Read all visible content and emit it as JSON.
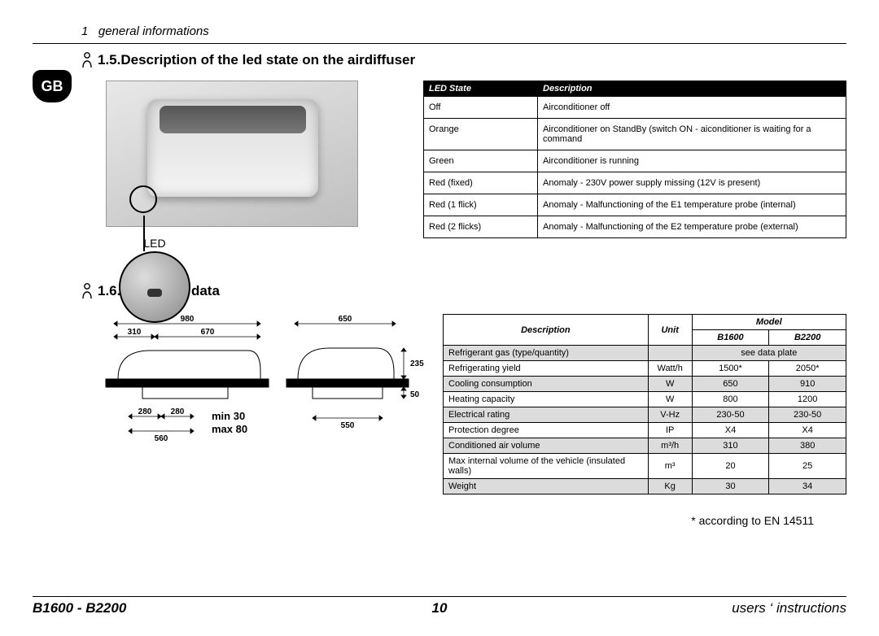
{
  "header": {
    "chapter_num": "1",
    "chapter_title": "general informations"
  },
  "country_badge": "GB",
  "section15": {
    "number": "1.5.",
    "title": "Description of the led state on the airdiffuser",
    "led_label": "LED",
    "table_headers": {
      "state": "LED State",
      "desc": "Description"
    },
    "rows": [
      {
        "state": "Off",
        "desc": "Airconditioner off"
      },
      {
        "state": "Orange",
        "desc": "Airconditioner on StandBy (switch ON - aiconditioner is waiting for a command"
      },
      {
        "state": "Green",
        "desc": "Airconditioner is running"
      },
      {
        "state": "Red (fixed)",
        "desc": "Anomaly - 230V power supply missing (12V is present)"
      },
      {
        "state": "Red  (1 flick)",
        "desc": "Anomaly - Malfunctioning of the E1 temperature probe (internal)"
      },
      {
        "state": "Red  (2 flicks)",
        "desc": "Anomaly - Malfunctioning of the E2 temperature probe (external)"
      }
    ]
  },
  "section16": {
    "number": "1.6.",
    "title": "Technical data",
    "dims": {
      "d980": "980",
      "d310": "310",
      "d670": "670",
      "d280a": "280",
      "d280b": "280",
      "d560": "560",
      "min": "min 30",
      "max": "max 80",
      "d650": "650",
      "d235": "235",
      "d50": "50",
      "d550": "550"
    },
    "table": {
      "headers": {
        "desc": "Description",
        "unit": "Unit",
        "model": "Model",
        "m1": "B1600",
        "m2": "B2200"
      },
      "rows": [
        {
          "grey": true,
          "desc": "Refrigerant gas (type/quantity)",
          "unit": "",
          "m1": "see data plate",
          "m2": "",
          "span": true
        },
        {
          "grey": false,
          "desc": "Refrigerating yield",
          "unit": "Watt/h",
          "m1": "1500*",
          "m2": "2050*"
        },
        {
          "grey": true,
          "desc": "Cooling consumption",
          "unit": "W",
          "m1": "650",
          "m2": "910"
        },
        {
          "grey": false,
          "desc": "Heating capacity",
          "unit": "W",
          "m1": "800",
          "m2": "1200"
        },
        {
          "grey": true,
          "desc": "Electrical rating",
          "unit": "V-Hz",
          "m1": "230-50",
          "m2": "230-50"
        },
        {
          "grey": false,
          "desc": "Protection degree",
          "unit": "IP",
          "m1": "X4",
          "m2": "X4"
        },
        {
          "grey": true,
          "desc": "Conditioned air volume",
          "unit": "m³/h",
          "m1": "310",
          "m2": "380"
        },
        {
          "grey": false,
          "desc": "Max internal volume of the vehicle (insulated walls)",
          "unit": "m³",
          "m1": "20",
          "m2": "25"
        },
        {
          "grey": true,
          "desc": "Weight",
          "unit": "Kg",
          "m1": "30",
          "m2": "34"
        }
      ]
    },
    "footnote": "* according to EN 14511"
  },
  "footer": {
    "model": "B1600 - B2200",
    "page": "10",
    "doc": "users ‘ instructions"
  }
}
